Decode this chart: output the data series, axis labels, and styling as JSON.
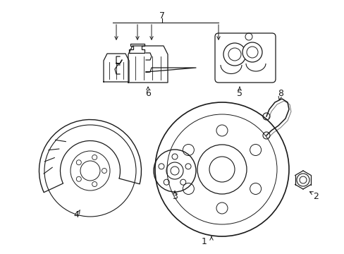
{
  "bg_color": "#ffffff",
  "line_color": "#1a1a1a",
  "lw": 0.9,
  "fig_w": 4.89,
  "fig_h": 3.6,
  "xlim": [
    0,
    489
  ],
  "ylim": [
    0,
    360
  ]
}
